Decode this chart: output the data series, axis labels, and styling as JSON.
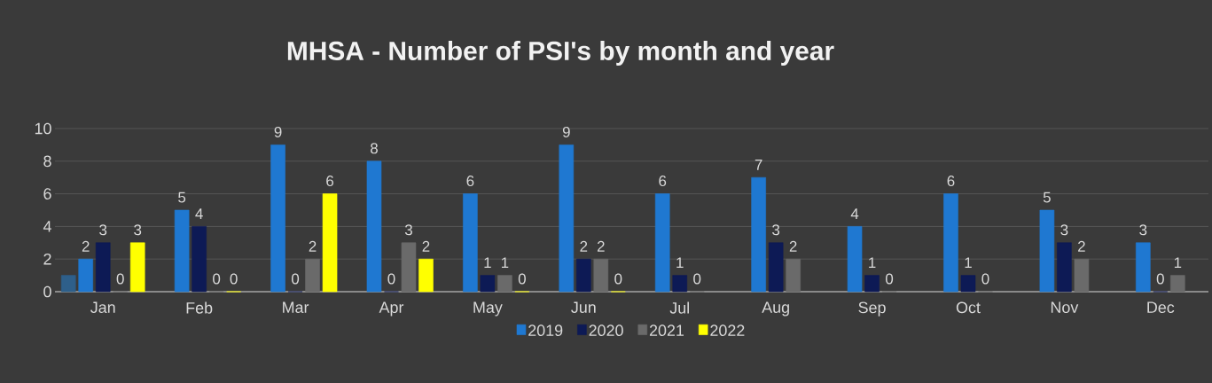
{
  "chart_data": {
    "type": "bar",
    "title": "MHSA - Number of PSI's by month and year",
    "categories": [
      "Jan",
      "Feb",
      "Mar",
      "Apr",
      "May",
      "Jun",
      "Jul",
      "Aug",
      "Sep",
      "Oct",
      "Nov",
      "Dec"
    ],
    "series": [
      {
        "color": "#2e5f8a",
        "values": [
          1,
          null,
          null,
          null,
          null,
          null,
          null,
          null,
          null,
          null,
          null,
          null
        ]
      },
      {
        "name": "2019",
        "color": "#1f78d1",
        "values": [
          2,
          5,
          9,
          8,
          6,
          9,
          6,
          7,
          4,
          6,
          5,
          3
        ],
        "value_labels": [
          "2",
          "5",
          "9",
          "8",
          "6",
          "9",
          "6",
          "7",
          "4",
          "6",
          "5",
          "3"
        ]
      },
      {
        "name": "2020",
        "color": "#0d1a55",
        "values": [
          3,
          4,
          0,
          0,
          1,
          2,
          1,
          3,
          1,
          1,
          3,
          0
        ],
        "value_labels": [
          "3",
          "4",
          "0",
          "0",
          "1",
          "2",
          "1",
          "3",
          "1",
          "1",
          "3",
          "0"
        ]
      },
      {
        "name": "2021",
        "color": "#6a6a6a",
        "values": [
          0,
          0,
          2,
          3,
          1,
          2,
          0,
          2,
          0,
          0,
          2,
          1
        ],
        "value_labels": [
          "0",
          "0",
          "2",
          "3",
          "1",
          "2",
          "0",
          "2",
          "0",
          "0",
          "2",
          "1"
        ]
      },
      {
        "name": "2022",
        "color": "#ffff00",
        "values": [
          3,
          0,
          6,
          2,
          0,
          0,
          null,
          null,
          null,
          null,
          null,
          null
        ],
        "value_labels": [
          "3",
          "0",
          "6",
          "2",
          "0",
          "0",
          null,
          null,
          null,
          null,
          null,
          null
        ]
      }
    ],
    "ylim": [
      0,
      10
    ],
    "yticks": [
      0,
      2,
      4,
      6,
      8,
      10
    ],
    "grid": "y",
    "legend": "bottom"
  }
}
